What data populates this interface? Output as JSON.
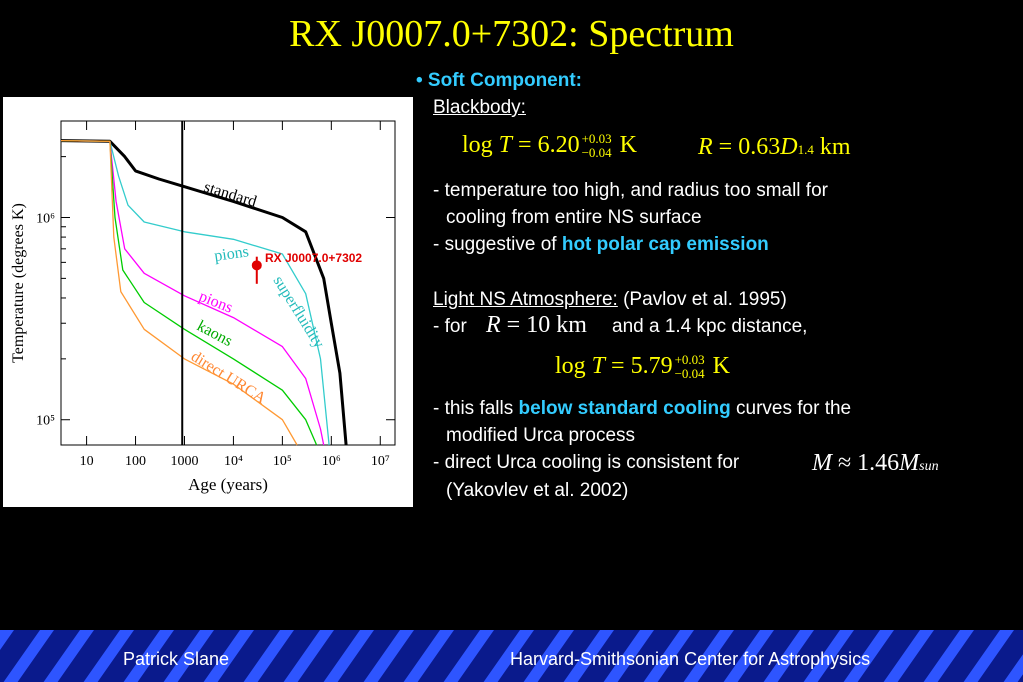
{
  "title": "RX J0007.0+7302: Spectrum",
  "text": {
    "soft_component": "• Soft Component:",
    "blackbody": "Blackbody:",
    "eq1_lhs": "log",
    "eq1_T": "T",
    "eq1_eq": "= 6.20",
    "eq1_sup": "+0.03",
    "eq1_sub": "−0.04",
    "eq1_unit": "K",
    "eq2_R": "R",
    "eq2_eq": "= 0.63",
    "eq2_D": "D",
    "eq2_sub": "1.4",
    "eq2_unit": "km",
    "line1": "- temperature too high, and radius too small for",
    "line2": "cooling from entire NS surface",
    "line3a": "- suggestive of ",
    "line3b": "hot polar cap emission",
    "light_ns": "Light NS Atmosphere:",
    "pavlov": " (Pavlov et al. 1995)",
    "for": "- for",
    "eq3_R": "R",
    "eq3_eq": "= 10 km",
    "for_rest": "and a 1.4 kpc distance,",
    "eq4_lhs": "log",
    "eq4_T": "T",
    "eq4_eq": "= 5.79",
    "eq4_sup": "+0.03",
    "eq4_sub": "−0.04",
    "eq4_unit": "K",
    "line4a": "- this falls ",
    "line4b": "below standard cooling",
    "line4c": " curves for the",
    "line5": "modified Urca process",
    "line6": "- direct Urca cooling is consistent for",
    "eq5_M": "M",
    "eq5_eq": "≈ 1.46",
    "eq5_M2": "M",
    "eq5_sub": "sun",
    "line7": "(Yakovlev et al. 2002)"
  },
  "footer": {
    "left": "Patrick Slane",
    "right": "Harvard-Smithsonian Center for Astrophysics"
  },
  "colors": {
    "title": "#ffff00",
    "highlight": "#33ccff",
    "footer_bg": "#0a1a8c",
    "standard": "#000000",
    "pions_superfluidity": "#33cccc",
    "pions": "#ff00ff",
    "kaons": "#00cc00",
    "direct_urca": "#ff9933",
    "source_marker": "#e00000"
  },
  "chart_data": {
    "type": "line",
    "xlabel": "Age (years)",
    "ylabel": "Temperature (degrees K)",
    "x_scale": "log",
    "y_scale": "log",
    "xlim": [
      3,
      20000000
    ],
    "ylim": [
      75000,
      3000000
    ],
    "x_ticks": [
      {
        "value": 10,
        "label": "10"
      },
      {
        "value": 100,
        "label": "100"
      },
      {
        "value": 1000,
        "label": "1000"
      },
      {
        "value": 10000,
        "label": "10⁴"
      },
      {
        "value": 100000,
        "label": "10⁵"
      },
      {
        "value": 1000000,
        "label": "10⁶"
      },
      {
        "value": 10000000,
        "label": "10⁷"
      }
    ],
    "y_ticks": [
      {
        "value": 100000,
        "label": "10⁵"
      },
      {
        "value": 1000000,
        "label": "10⁶"
      }
    ],
    "vertical_line_x": 900,
    "series": [
      {
        "name": "standard",
        "color": "#000000",
        "points": [
          [
            3,
            2400000
          ],
          [
            30,
            2380000
          ],
          [
            60,
            2000000
          ],
          [
            100,
            1700000
          ],
          [
            300,
            1550000
          ],
          [
            1000,
            1420000
          ],
          [
            10000,
            1200000
          ],
          [
            100000,
            1000000
          ],
          [
            300000,
            850000
          ],
          [
            700000,
            500000
          ],
          [
            1000000,
            300000
          ],
          [
            1500000,
            170000
          ],
          [
            2000000,
            75000
          ]
        ]
      },
      {
        "name": "pions superfluidity",
        "color": "#33cccc",
        "points": [
          [
            3,
            2400000
          ],
          [
            30,
            2380000
          ],
          [
            45,
            1600000
          ],
          [
            70,
            1150000
          ],
          [
            150,
            950000
          ],
          [
            1000,
            850000
          ],
          [
            10000,
            780000
          ],
          [
            100000,
            660000
          ],
          [
            300000,
            420000
          ],
          [
            600000,
            200000
          ],
          [
            900000,
            75000
          ]
        ]
      },
      {
        "name": "pions",
        "color": "#ff00ff",
        "points": [
          [
            3,
            2400000
          ],
          [
            30,
            2380000
          ],
          [
            40,
            1200000
          ],
          [
            60,
            700000
          ],
          [
            150,
            530000
          ],
          [
            1000,
            410000
          ],
          [
            10000,
            320000
          ],
          [
            100000,
            230000
          ],
          [
            300000,
            160000
          ],
          [
            600000,
            90000
          ],
          [
            700000,
            75000
          ]
        ]
      },
      {
        "name": "kaons",
        "color": "#00cc00",
        "points": [
          [
            3,
            2400000
          ],
          [
            30,
            2380000
          ],
          [
            38,
            1000000
          ],
          [
            55,
            550000
          ],
          [
            150,
            380000
          ],
          [
            1000,
            280000
          ],
          [
            10000,
            200000
          ],
          [
            100000,
            140000
          ],
          [
            300000,
            100000
          ],
          [
            500000,
            75000
          ]
        ]
      },
      {
        "name": "direct URCA",
        "color": "#ff9933",
        "points": [
          [
            3,
            2400000
          ],
          [
            30,
            2380000
          ],
          [
            36,
            800000
          ],
          [
            50,
            430000
          ],
          [
            150,
            280000
          ],
          [
            1000,
            200000
          ],
          [
            10000,
            150000
          ],
          [
            100000,
            100000
          ],
          [
            200000,
            75000
          ]
        ]
      }
    ],
    "annotations": [
      {
        "text": "standard"
      },
      {
        "text": "pions"
      },
      {
        "text": "superfluidity"
      },
      {
        "text": "pions"
      },
      {
        "text": "kaons"
      },
      {
        "text": "direct URCA"
      },
      {
        "text": "RX J0007.0+7302"
      }
    ],
    "source_point": {
      "name": "RX J0007.0+7302",
      "x": 30000,
      "y_low": 470000,
      "y_high": 640000,
      "y": 580000
    }
  }
}
